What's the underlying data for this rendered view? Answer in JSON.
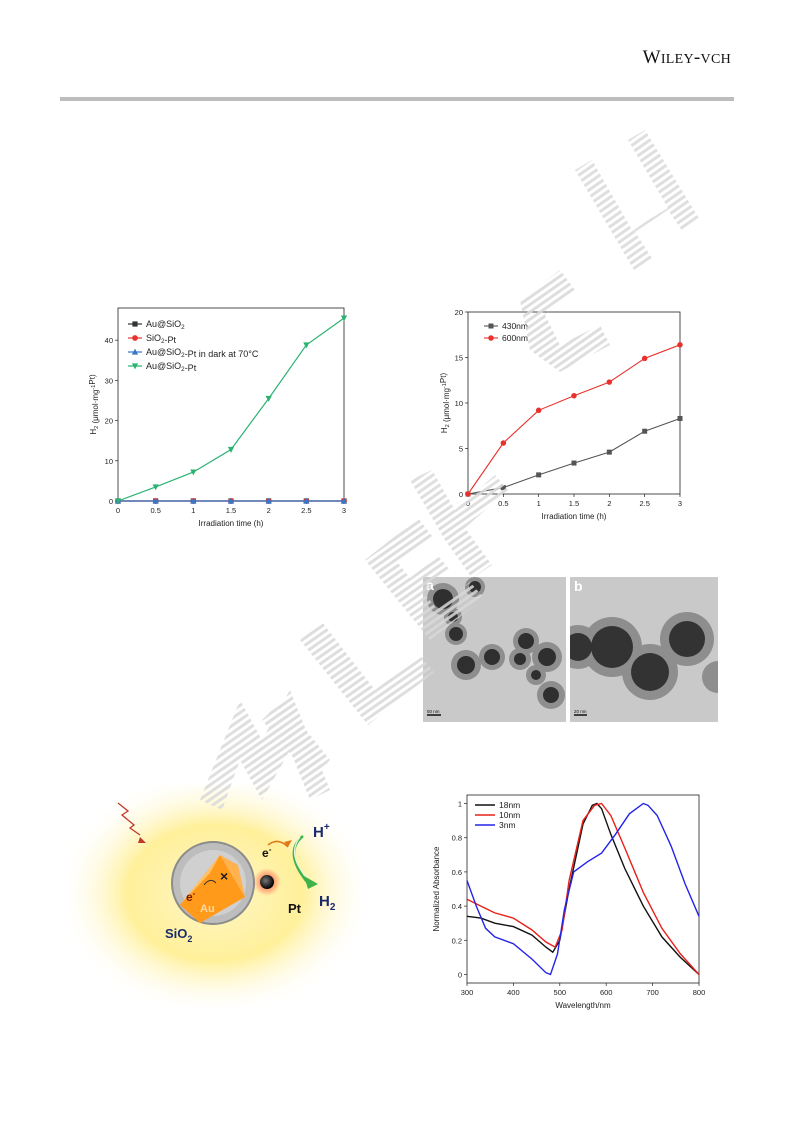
{
  "header": {
    "brand_main": "W",
    "brand_caps": "ILEY",
    "brand_sep": "-",
    "brand_tail": "VCH"
  },
  "chart_data": [
    {
      "type": "line",
      "xlabel": "Irradiation time (h)",
      "ylabel": "H2 (μmol·mg-1Pt)",
      "xlim": [
        0,
        3
      ],
      "ylim": [
        0,
        48
      ],
      "xticks": [
        "0",
        "0.5",
        "1",
        "1.5",
        "2",
        "2.5",
        "3"
      ],
      "yticks": [
        "0",
        "10",
        "20",
        "30",
        "40"
      ],
      "legend_position": "top-left",
      "x": [
        0,
        0.5,
        1,
        1.5,
        2,
        2.5,
        3
      ],
      "series": [
        {
          "name": "Au@SiO2",
          "marker": "square",
          "color": "#333333",
          "values": [
            0,
            0,
            0,
            0,
            0,
            0,
            0
          ]
        },
        {
          "name": "SiO2-Pt",
          "marker": "circle",
          "color": "#e8312c",
          "values": [
            0,
            0,
            0,
            0,
            0,
            0,
            0
          ]
        },
        {
          "name": "Au@SiO2-Pt in dark at 70°C",
          "marker": "triangle-up",
          "color": "#3577c8",
          "values": [
            0,
            0,
            0,
            0,
            0,
            0,
            0
          ]
        },
        {
          "name": "Au@SiO2-Pt",
          "marker": "triangle-down",
          "color": "#2bb272",
          "values": [
            0,
            3.5,
            7.2,
            12.8,
            25.5,
            38.8,
            45.5
          ]
        }
      ]
    },
    {
      "type": "line",
      "xlabel": "Irradiation time (h)",
      "ylabel": "H2 (μmol·mg-1Pt)",
      "xlim": [
        0,
        3
      ],
      "ylim": [
        0,
        20
      ],
      "xticks": [
        "0",
        "0.5",
        "1",
        "1.5",
        "2",
        "2.5",
        "3"
      ],
      "yticks": [
        "0",
        "5",
        "10",
        "15",
        "20"
      ],
      "legend_position": "top-left",
      "x": [
        0,
        0.5,
        1,
        1.5,
        2,
        2.5,
        3
      ],
      "series": [
        {
          "name": "430nm",
          "marker": "square",
          "color": "#555555",
          "values": [
            0,
            0.7,
            2.1,
            3.4,
            4.6,
            6.9,
            8.3
          ]
        },
        {
          "name": "600nm",
          "marker": "circle",
          "color": "#e8312c",
          "values": [
            0,
            5.6,
            9.2,
            10.8,
            12.3,
            14.9,
            16.4
          ]
        }
      ]
    },
    {
      "type": "line",
      "xlabel": "Wavelength/nm",
      "ylabel": "Normalized Absorbance",
      "xlim": [
        300,
        800
      ],
      "ylim": [
        -0.05,
        1.05
      ],
      "xticks": [
        "300",
        "400",
        "500",
        "600",
        "700",
        "800"
      ],
      "yticks": [
        "0",
        "0.2",
        "0.4",
        "0.6",
        "0.8",
        "1"
      ],
      "legend_position": "top-left",
      "series": [
        {
          "name": "18nm",
          "color": "#111111",
          "x": [
            300,
            330,
            360,
            400,
            440,
            470,
            485,
            500,
            520,
            550,
            570,
            580,
            590,
            610,
            640,
            680,
            720,
            760,
            800
          ],
          "values": [
            0.34,
            0.33,
            0.3,
            0.28,
            0.23,
            0.16,
            0.13,
            0.2,
            0.5,
            0.88,
            0.99,
            1.0,
            0.97,
            0.82,
            0.62,
            0.4,
            0.22,
            0.1,
            0.0
          ]
        },
        {
          "name": "10nm",
          "color": "#e8211a",
          "x": [
            300,
            330,
            360,
            400,
            440,
            470,
            490,
            505,
            520,
            550,
            575,
            590,
            610,
            640,
            680,
            720,
            760,
            800
          ],
          "values": [
            0.44,
            0.4,
            0.36,
            0.33,
            0.26,
            0.19,
            0.16,
            0.26,
            0.55,
            0.9,
            0.99,
            1.0,
            0.93,
            0.74,
            0.48,
            0.27,
            0.12,
            0.0
          ]
        },
        {
          "name": "3nm",
          "color": "#2424e8",
          "x": [
            300,
            320,
            340,
            360,
            400,
            440,
            470,
            480,
            495,
            510,
            530,
            560,
            590,
            620,
            650,
            680,
            690,
            710,
            740,
            770,
            800
          ],
          "values": [
            0.55,
            0.4,
            0.27,
            0.22,
            0.18,
            0.09,
            0.01,
            0.0,
            0.12,
            0.38,
            0.6,
            0.66,
            0.71,
            0.82,
            0.94,
            1.0,
            0.99,
            0.93,
            0.75,
            0.53,
            0.34
          ]
        }
      ]
    }
  ],
  "tem": {
    "panel_a": "a",
    "panel_b": "b",
    "scale_a": "50 nm",
    "scale_b": "20 nm"
  },
  "schematic": {
    "h_plus": "H",
    "h_plus_sup": "+",
    "h2": "H",
    "h2_sub": "2",
    "electron": "e",
    "electron_sup": "-",
    "pt": "Pt",
    "au": "Au",
    "sio2": "SiO",
    "sio2_sub": "2",
    "cross": "×"
  }
}
